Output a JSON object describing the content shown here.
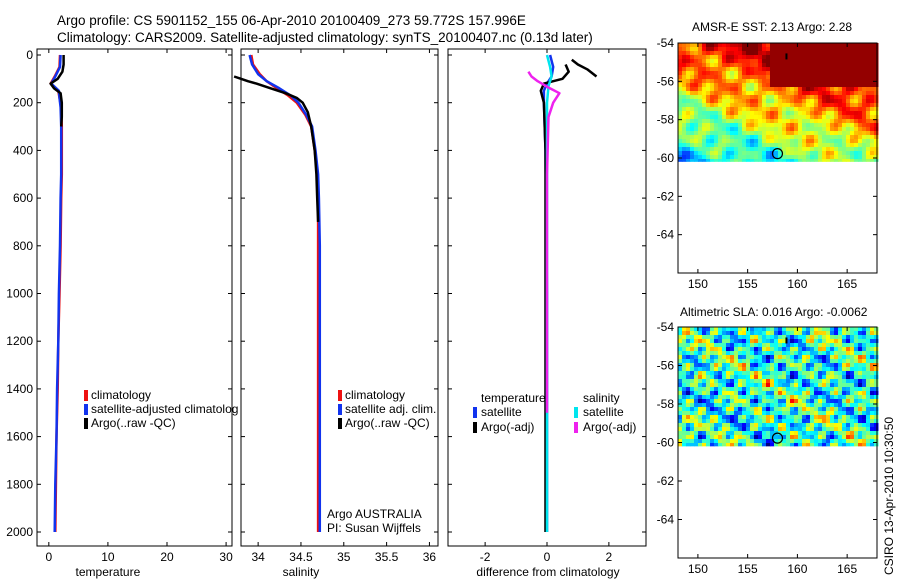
{
  "header": {
    "title_line1": "Argo profile: CS 5901152_155 06-Apr-2010 20100409_273 59.772S 157.996E",
    "title_line2": "Climatology: CARS2009. Satellite-adjusted climatology: synTS_20100407.nc (0.13d later)"
  },
  "chart_data": [
    {
      "type": "line",
      "panel": "temperature",
      "xlabel": "temperature",
      "ylabel": "",
      "xlim": [
        -2,
        31
      ],
      "ylim": [
        0,
        2050
      ],
      "y_reversed": true,
      "xticks": [
        0,
        10,
        20,
        30
      ],
      "yticks": [
        0,
        200,
        400,
        600,
        800,
        1000,
        1200,
        1400,
        1600,
        1800,
        2000
      ],
      "colors": {
        "climatology": "#ee1111",
        "satellite": "#1133ee",
        "argo": "#000000"
      },
      "legend": [
        "climatology",
        "satellite-adjusted climatolog",
        "Argo(..raw -QC)"
      ],
      "series": [
        {
          "name": "climatology",
          "x": [
            1.9,
            1.8,
            1.0,
            0.3,
            1.6,
            1.8,
            2.1,
            2.2,
            2.2,
            2.2,
            2.1,
            2.0,
            1.8,
            1.6,
            1.5,
            1.3,
            1.2,
            1.1
          ],
          "y": [
            0,
            50,
            90,
            120,
            150,
            180,
            220,
            300,
            400,
            500,
            600,
            800,
            1000,
            1200,
            1400,
            1600,
            1800,
            2000
          ]
        },
        {
          "name": "satellite-adjusted climatology",
          "x": [
            2.0,
            1.9,
            1.1,
            0.4,
            1.7,
            1.8,
            2.0,
            2.1,
            2.1,
            2.1,
            2.0,
            1.9,
            1.7,
            1.6,
            1.4,
            1.3,
            1.1,
            1.0
          ],
          "y": [
            0,
            50,
            90,
            120,
            150,
            180,
            220,
            300,
            400,
            500,
            600,
            800,
            1000,
            1200,
            1400,
            1600,
            1800,
            2000
          ]
        },
        {
          "name": "Argo(..raw -QC)",
          "x": [
            2.5,
            2.5,
            2.3,
            1.5,
            0.3,
            0.9,
            2.0,
            2.2,
            2.2,
            2.1
          ],
          "y": [
            0,
            40,
            70,
            100,
            120,
            140,
            160,
            200,
            260,
            300
          ]
        }
      ]
    },
    {
      "type": "line",
      "panel": "salinity",
      "xlabel": "salinity",
      "ylabel": "",
      "xlim": [
        33.8,
        36.1
      ],
      "ylim": [
        0,
        2050
      ],
      "y_reversed": true,
      "xticks": [
        34,
        34.5,
        35,
        35.5,
        36
      ],
      "yticks": [
        0,
        200,
        400,
        600,
        800,
        1000,
        1200,
        1400,
        1600,
        1800,
        2000
      ],
      "colors": {
        "climatology": "#ee1111",
        "satellite": "#1133ee",
        "argo": "#000000"
      },
      "legend": [
        "climatology",
        "satellite adj. clim.",
        "Argo(..raw -QC)"
      ],
      "annotation": [
        "Argo AUSTRALIA",
        "PI: Susan Wijffels"
      ],
      "series": [
        {
          "name": "climatology",
          "x": [
            33.92,
            33.94,
            34.02,
            34.1,
            34.22,
            34.35,
            34.45,
            34.55,
            34.62,
            34.66,
            34.69,
            34.7,
            34.7,
            34.7,
            34.7,
            34.7,
            34.7
          ],
          "y": [
            0,
            40,
            80,
            110,
            140,
            170,
            200,
            250,
            300,
            400,
            500,
            600,
            800,
            1000,
            1400,
            1800,
            2000
          ]
        },
        {
          "name": "satellite adj. clim.",
          "x": [
            33.9,
            33.93,
            34.0,
            34.1,
            34.25,
            34.38,
            34.47,
            34.56,
            34.63,
            34.67,
            34.7,
            34.71,
            34.72,
            34.72,
            34.72,
            34.72,
            34.72
          ],
          "y": [
            0,
            40,
            80,
            110,
            140,
            170,
            200,
            250,
            300,
            400,
            500,
            600,
            800,
            1000,
            1400,
            1800,
            2000
          ]
        },
        {
          "name": "Argo(..raw -QC)",
          "x": [
            33.72,
            33.8,
            33.88,
            33.98,
            34.15,
            34.32,
            34.45,
            34.52,
            34.58,
            34.62,
            34.66,
            34.68,
            34.69,
            34.7
          ],
          "y": [
            90,
            100,
            110,
            120,
            140,
            160,
            180,
            200,
            240,
            300,
            400,
            500,
            600,
            700
          ]
        }
      ]
    },
    {
      "type": "line",
      "panel": "difference",
      "xlabel": "difference from climatology",
      "ylabel": "",
      "xlim": [
        -3.2,
        3.2
      ],
      "ylim": [
        0,
        2050
      ],
      "y_reversed": true,
      "xticks": [
        -2,
        0,
        2
      ],
      "yticks": [
        0,
        200,
        400,
        600,
        800,
        1000,
        1200,
        1400,
        1600,
        1800,
        2000
      ],
      "colors": {
        "temp_satellite": "#1133ee",
        "temp_argo": "#000000",
        "sal_satellite": "#00e5ee",
        "sal_argo": "#ee22ee"
      },
      "legend_temperature": {
        "title": "temperature",
        "items": [
          "satellite",
          "Argo(-adj)"
        ]
      },
      "legend_salinity": {
        "title": "salinity",
        "items": [
          "satellite",
          "Argo(-adj)"
        ]
      },
      "series": [
        {
          "name": "temperature satellite",
          "x": [
            0.1,
            0.2,
            0.15,
            0.0,
            -0.1,
            -0.1,
            -0.05,
            0.0,
            0.0
          ],
          "y": [
            0,
            50,
            90,
            120,
            150,
            200,
            400,
            1000,
            2000
          ]
        },
        {
          "name": "temperature Argo(-adj)",
          "x": [
            0.6,
            0.7,
            0.5,
            -0.1,
            -0.2,
            -0.1,
            -0.05,
            -0.05,
            -0.05
          ],
          "y": [
            40,
            70,
            100,
            120,
            150,
            200,
            400,
            1000,
            2000
          ]
        },
        {
          "name": "salinity satellite",
          "x": [
            0.0,
            0.1,
            0.15,
            0.05,
            0.0,
            0.0,
            0.0,
            0.0
          ],
          "y": [
            0,
            50,
            90,
            130,
            200,
            600,
            1200,
            2000
          ]
        },
        {
          "name": "salinity Argo(-adj)",
          "x": [
            -0.6,
            -0.5,
            -0.3,
            0.1,
            0.4,
            0.2,
            0.05,
            0.0,
            0.0
          ],
          "y": [
            70,
            90,
            110,
            140,
            160,
            200,
            260,
            500,
            1500
          ]
        },
        {
          "name": "Argo black top",
          "x": [
            1.6,
            1.3,
            1.0,
            0.8
          ],
          "y": [
            90,
            60,
            40,
            20
          ]
        }
      ]
    },
    {
      "type": "heatmap",
      "panel": "map-sst",
      "title": "AMSR-E SST: 2.13 Argo: 2.28",
      "xlim": [
        148,
        168
      ],
      "ylim": [
        -66,
        -54
      ],
      "xticks": [
        150,
        155,
        160,
        165
      ],
      "yticks": [
        -54,
        -56,
        -58,
        -60,
        -62,
        -64
      ],
      "data_extent_lat": [
        -60.2,
        -54
      ],
      "float_position": {
        "lon": 157.996,
        "lat": -59.772
      }
    },
    {
      "type": "heatmap",
      "panel": "map-sla",
      "title": "Altimetric SLA: 0.016 Argo: -0.0062",
      "xlim": [
        148,
        168
      ],
      "ylim": [
        -66,
        -54
      ],
      "xticks": [
        150,
        155,
        160,
        165
      ],
      "yticks": [
        -54,
        -56,
        -58,
        -60,
        -62,
        -64
      ],
      "data_extent_lat": [
        -60.2,
        -54
      ],
      "float_position": {
        "lon": 157.996,
        "lat": -59.772
      }
    }
  ],
  "footer": {
    "stamp": "CSIRO 13-Apr-2010 10:30:50"
  }
}
